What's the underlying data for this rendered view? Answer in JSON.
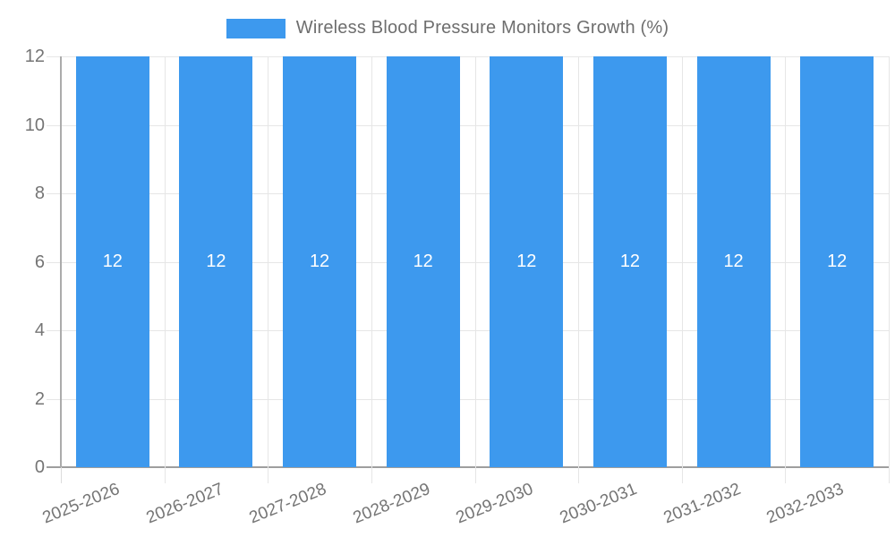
{
  "legend": {
    "label": "Wireless Blood Pressure Monitors Growth (%)"
  },
  "chart_data": {
    "type": "bar",
    "title": "Wireless Blood Pressure Monitors Growth (%)",
    "categories": [
      "2025-2026",
      "2026-2027",
      "2027-2028",
      "2028-2029",
      "2029-2030",
      "2030-2031",
      "2031-2032",
      "2032-2033"
    ],
    "values": [
      12,
      12,
      12,
      12,
      12,
      12,
      12,
      12
    ],
    "bar_value_labels": [
      "12",
      "12",
      "12",
      "12",
      "12",
      "12",
      "12",
      "12"
    ],
    "xlabel": "",
    "ylabel": "",
    "ylim": [
      0,
      12
    ],
    "yticks": [
      0,
      2,
      4,
      6,
      8,
      10,
      12
    ],
    "grid": "on",
    "legend_position": "top",
    "colors": {
      "bar": "#3D99EE",
      "grid": "#E6E6E6",
      "axis_line": "#ABABAB",
      "baseline": "#9E9E9E",
      "boundary_tick": "#DCDCDC",
      "axis_text": "#757575",
      "title_text": "#6E6E6E",
      "value_text": "#FFFFFF"
    }
  }
}
